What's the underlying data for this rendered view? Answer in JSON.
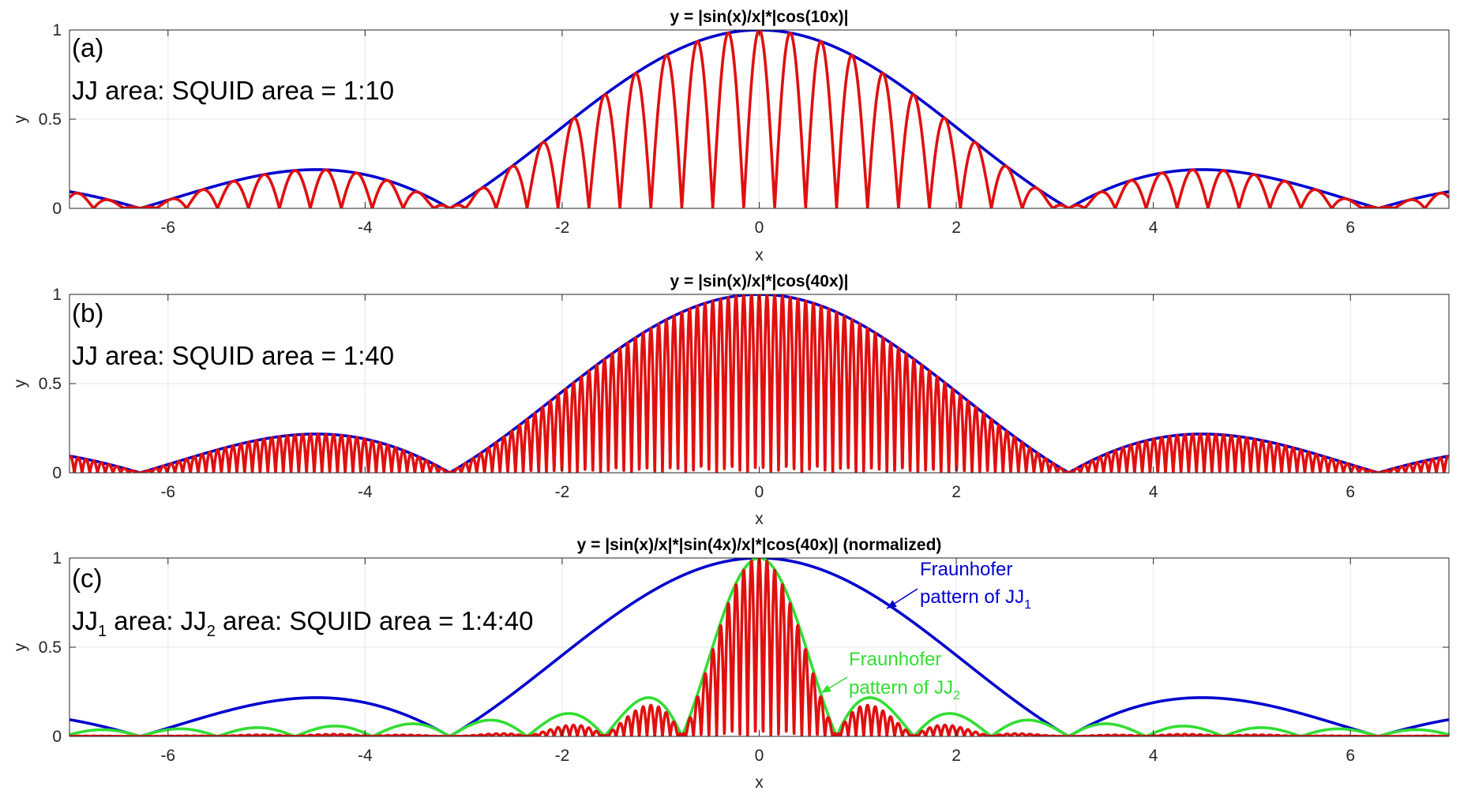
{
  "figure": {
    "colors": {
      "blue": "#0000CD",
      "red": "#E01010",
      "green": "#33DD33",
      "grid": "#E6E6E6",
      "axis": "#262626"
    }
  },
  "chart_data": [
    {
      "type": "line",
      "panel_label": "(a)",
      "title": "y = |sin(x)/x|*|cos(10x)|",
      "annotation": "JJ area: SQUID area = 1:10",
      "xlabel": "x",
      "ylabel": "y",
      "xlim": [
        -7,
        7
      ],
      "ylim": [
        0,
        1
      ],
      "xticks": [
        -6,
        -4,
        -2,
        0,
        2,
        4,
        6
      ],
      "xtick_labels": [
        "-6",
        "-4",
        "-2",
        "0",
        "2",
        "4",
        "6"
      ],
      "yticks": [
        0,
        0.5,
        1
      ],
      "ytick_labels": [
        "0",
        "0.5",
        "1"
      ],
      "grid": true,
      "series": [
        {
          "name": "|sin(x)/x|",
          "color": "#0000CD",
          "formula": "abs(sin(x)/x)"
        },
        {
          "name": "|sin(x)/x|*|cos(10x)|",
          "color": "#E01010",
          "formula": "abs(sin(x)/x)*abs(cos(10x))"
        }
      ]
    },
    {
      "type": "line",
      "panel_label": "(b)",
      "title": "y = |sin(x)/x|*|cos(40x)|",
      "annotation": "JJ area: SQUID area = 1:40",
      "xlabel": "x",
      "ylabel": "y",
      "xlim": [
        -7,
        7
      ],
      "ylim": [
        0,
        1
      ],
      "xticks": [
        -6,
        -4,
        -2,
        0,
        2,
        4,
        6
      ],
      "xtick_labels": [
        "-6",
        "-4",
        "-2",
        "0",
        "2",
        "4",
        "6"
      ],
      "yticks": [
        0,
        0.5,
        1
      ],
      "ytick_labels": [
        "0",
        "0.5",
        "1"
      ],
      "grid": true,
      "series": [
        {
          "name": "|sin(x)/x|",
          "color": "#0000CD",
          "formula": "abs(sin(x)/x)"
        },
        {
          "name": "|sin(x)/x|*|cos(40x)|",
          "color": "#E01010",
          "formula": "abs(sin(x)/x)*abs(cos(40x))"
        }
      ]
    },
    {
      "type": "line",
      "panel_label": "(c)",
      "title": "y = |sin(x)/x|*|sin(4x)/x|*|cos(40x)| (normalized)",
      "annotation_parts": [
        "JJ",
        "1",
        " area: JJ",
        "2",
        " area: SQUID area  = 1:4:40"
      ],
      "xlabel": "x",
      "ylabel": "y",
      "xlim": [
        -7,
        7
      ],
      "ylim": [
        0,
        1
      ],
      "xticks": [
        -6,
        -4,
        -2,
        0,
        2,
        4,
        6
      ],
      "xtick_labels": [
        "-6",
        "-4",
        "-2",
        "0",
        "2",
        "4",
        "6"
      ],
      "yticks": [
        0,
        0.5,
        1
      ],
      "ytick_labels": [
        "0",
        "0.5",
        "1"
      ],
      "grid": true,
      "series": [
        {
          "name": "|sin(x)/x|",
          "color": "#0000CD",
          "formula": "abs(sin(x)/x)"
        },
        {
          "name": "|sin(4x)/(4x)|",
          "color": "#33DD33",
          "formula": "abs(sin(4x)/(4x))"
        },
        {
          "name": "|sin(x)/x|*|sin(4x)/(4x)|*|cos(40x)|",
          "color": "#E01010",
          "formula": "abs(sin(x)/x)*abs(sin(4x)/(4x))*abs(cos(40x))"
        }
      ],
      "callouts": [
        {
          "line1": "Fraunhofer",
          "line2": "pattern of JJ",
          "subscript": "1",
          "color": "#0000CD"
        },
        {
          "line1": "Fraunhofer",
          "line2": "pattern of JJ",
          "subscript": "2",
          "color": "#33DD33"
        }
      ]
    }
  ]
}
